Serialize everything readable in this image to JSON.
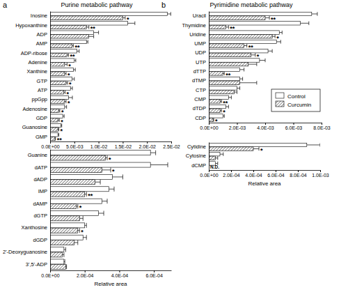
{
  "chart_data": [
    {
      "type": "bar",
      "orientation": "horizontal",
      "panel": "a",
      "title": "Purine metabolic pathway",
      "categories": [
        "Inosine",
        "Hypoxanthine",
        "ADP",
        "AMP",
        "ADP-ribose",
        "Adenine",
        "Xanthine",
        "GTP",
        "ATP",
        "ppGpp",
        "Adenosine",
        "GDP",
        "Guanosine",
        "GMP"
      ],
      "series": [
        {
          "color": "#ffffff",
          "values": [
            0.0242,
            0.016,
            0.009,
            0.0075,
            0.0055,
            0.005,
            0.0048,
            0.0045,
            0.0042,
            0.0038,
            0.003,
            0.0026,
            0.0022,
            0.0016
          ],
          "errors": [
            0.0007,
            0.0015,
            0.001,
            0.0003,
            0.0005,
            0.0003,
            0.0004,
            0.0005,
            0.0004,
            0.0008,
            0.0004,
            0.0003,
            0.0002,
            0.0002
          ]
        },
        {
          "color": "#555555",
          "values": [
            0.015,
            0.0075,
            0.008,
            0.0045,
            0.0035,
            0.003,
            0.003,
            0.0033,
            0.0028,
            0.003,
            0.0018,
            0.0016,
            0.0016,
            0.001
          ],
          "errors": [
            0.0005,
            0.0005,
            0.001,
            0.0003,
            0.0003,
            0.0005,
            0.0003,
            0.0003,
            0.0003,
            0.0003,
            0.0002,
            0.0003,
            0.0002,
            0.0001
          ],
          "notes": [
            "*",
            "**",
            null,
            "**",
            "**",
            "*",
            "*",
            "*",
            "*",
            "*",
            "*",
            "*",
            "*",
            "**"
          ]
        }
      ],
      "xlim": [
        0,
        0.025
      ],
      "xticks": [
        {
          "value": 0,
          "label": "0.0E+00"
        },
        {
          "value": 0.005,
          "label": "5.0E-03"
        },
        {
          "value": 0.01,
          "label": "1.0E-02"
        },
        {
          "value": 0.015,
          "label": "1.5E-02"
        },
        {
          "value": 0.02,
          "label": "2.0E-02"
        },
        {
          "value": 0.025,
          "label": "2.5E-02"
        }
      ]
    },
    {
      "type": "bar",
      "orientation": "horizontal",
      "x_label": "Relative area",
      "categories": [
        "Guanine",
        "dATP",
        "dADP",
        "IMP",
        "dAMP",
        "dGTP",
        "Xanthosine",
        "dGDP",
        "2'-Deoxyguanosine",
        "3',5'-ADP"
      ],
      "series": [
        {
          "color": "#ffffff",
          "values": [
            0.00058,
            0.00058,
            0.00036,
            0.00034,
            0.0003,
            0.00028,
            0.0002,
            0.00019,
            8e-05,
            8e-05
          ],
          "errors": [
            3e-05,
            0.0001,
            6e-05,
            3e-05,
            3e-05,
            3e-05,
            1e-05,
            2e-05,
            1e-05,
            5e-06
          ]
        },
        {
          "color": "#555555",
          "values": [
            0.00032,
            0.0003,
            0.00026,
            0.0002,
            0.00015,
            0.00017,
            0.00016,
            0.00014,
            7e-05,
            9e-05
          ],
          "errors": [
            1e-05,
            5e-05,
            3e-05,
            1e-05,
            1e-05,
            2e-05,
            1e-05,
            2e-05,
            1e-05,
            5e-06
          ],
          "notes": [
            "*",
            "*",
            null,
            "**",
            "*",
            null,
            "*",
            null,
            null,
            null
          ]
        }
      ],
      "xlim": [
        0,
        0.0007
      ],
      "xticks": [
        {
          "value": 0,
          "label": "0.0E+00"
        },
        {
          "value": 0.0002,
          "label": "2.0E-04"
        },
        {
          "value": 0.0004,
          "label": "4.0E-04"
        },
        {
          "value": 0.0006,
          "label": "6.0E-04"
        }
      ]
    },
    {
      "type": "bar",
      "orientation": "horizontal",
      "panel": "b",
      "title": "Pyrimidine metabolic pathway",
      "legend": "lower right",
      "categories": [
        "Uracil",
        "Thymidine",
        "Uridine",
        "UMP",
        "UDP",
        "UTP",
        "dTTP",
        "dTMP",
        "CTP",
        "CMP",
        "dTDP",
        "CDP"
      ],
      "series": [
        {
          "name": "Control",
          "color": "#ffffff",
          "values": [
            0.0073,
            0.0065,
            0.005,
            0.0048,
            0.0042,
            0.0036,
            0.0022,
            0.0022,
            0.002,
            0.0014,
            0.0012,
            0.001
          ],
          "errors": [
            0.0004,
            0.0006,
            0.0002,
            0.0003,
            0.0003,
            0.0004,
            0.0003,
            0.0002,
            0.0002,
            0.0002,
            0.0002,
            0.0001
          ]
        },
        {
          "name": "Curcumin",
          "color": "#555555",
          "values": [
            0.004,
            0.0012,
            0.0045,
            0.0025,
            0.003,
            0.0028,
            0.001,
            0.0022,
            0.0018,
            0.0008,
            0.0008,
            0.0003
          ],
          "errors": [
            0.0003,
            0.0002,
            0.0002,
            0.0002,
            0.0003,
            0.0006,
            0.0001,
            0.0012,
            0.0002,
            0.0001,
            0.0001,
            5e-05
          ],
          "notes": [
            "**",
            "**",
            "*",
            "**",
            "*",
            null,
            "**",
            null,
            null,
            "**",
            "*",
            "*"
          ]
        }
      ],
      "xlim": [
        0,
        0.008
      ],
      "xticks": [
        {
          "value": 0,
          "label": "0.0E+00"
        },
        {
          "value": 0.002,
          "label": "2.0E-03"
        },
        {
          "value": 0.004,
          "label": "4.0E-03"
        },
        {
          "value": 0.006,
          "label": "6.0E-03"
        },
        {
          "value": 0.008,
          "label": "8.0E-03"
        }
      ]
    },
    {
      "type": "bar",
      "orientation": "horizontal",
      "x_label": "Relative area",
      "categories": [
        "Cytidine",
        "Cytosine",
        "dCMP"
      ],
      "series": [
        {
          "color": "#ffffff",
          "values": [
            0.00088,
            0.0001,
            6e-05
          ],
          "errors": [
            0.00012,
            3e-05,
            2e-05
          ]
        },
        {
          "color": "#555555",
          "values": [
            0.0004,
            6e-05,
            null
          ],
          "errors": [
            5e-05,
            2e-05,
            null
          ],
          "notes": [
            "*",
            null,
            "N.D."
          ]
        }
      ],
      "xlim": [
        0,
        0.001
      ],
      "xticks": [
        {
          "value": 0,
          "label": "0.0E+00"
        },
        {
          "value": 0.0002,
          "label": "2.0E-04"
        },
        {
          "value": 0.0004,
          "label": "4.0E-04"
        },
        {
          "value": 0.0006,
          "label": "6.0E-04"
        },
        {
          "value": 0.0008,
          "label": "8.0E-04"
        },
        {
          "value": 0.001,
          "label": "1.0E-03"
        }
      ]
    }
  ]
}
